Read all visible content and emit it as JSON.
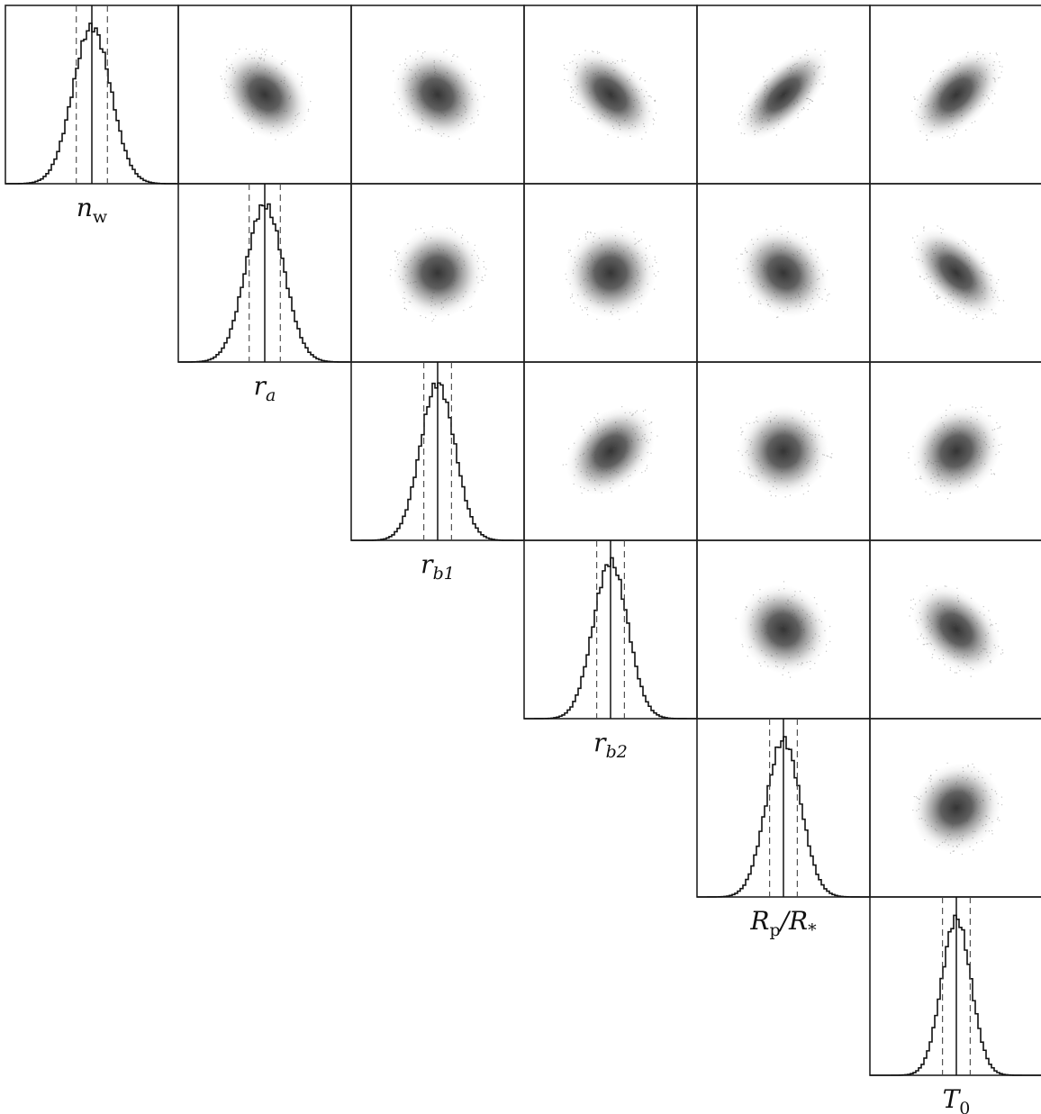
{
  "chart_data": {
    "type": "scatter",
    "description_type": "corner",
    "parameters": [
      {
        "symbol": "n",
        "subscript": "w",
        "subscript_italic": false
      },
      {
        "symbol": "r",
        "subscript": "a",
        "subscript_italic": true
      },
      {
        "symbol": "r",
        "subscript": "b1",
        "subscript_italic": true
      },
      {
        "symbol": "r",
        "subscript": "b2",
        "subscript_italic": true
      },
      {
        "symbol": "R",
        "subscript": "p",
        "subscript_italic": false,
        "suffix_symbol": "/R",
        "suffix_subscript": "*"
      },
      {
        "symbol": "T",
        "subscript": "0",
        "subscript_italic": false
      }
    ],
    "histograms": [
      {
        "param": 0,
        "median": 0.5,
        "lower": 0.41,
        "upper": 0.59,
        "spread": 0.11
      },
      {
        "param": 1,
        "median": 0.5,
        "lower": 0.41,
        "upper": 0.59,
        "spread": 0.11
      },
      {
        "param": 2,
        "median": 0.5,
        "lower": 0.42,
        "upper": 0.58,
        "spread": 0.1
      },
      {
        "param": 3,
        "median": 0.5,
        "lower": 0.42,
        "upper": 0.58,
        "spread": 0.1
      },
      {
        "param": 4,
        "median": 0.5,
        "lower": 0.42,
        "upper": 0.58,
        "spread": 0.1
      },
      {
        "param": 5,
        "median": 0.5,
        "lower": 0.42,
        "upper": 0.58,
        "spread": 0.085
      }
    ],
    "correlations": [
      {
        "row": 0,
        "col": 1,
        "rho": -0.3
      },
      {
        "row": 0,
        "col": 2,
        "rho": -0.2
      },
      {
        "row": 0,
        "col": 3,
        "rho": -0.5
      },
      {
        "row": 0,
        "col": 4,
        "rho": 0.75
      },
      {
        "row": 0,
        "col": 5,
        "rho": 0.55
      },
      {
        "row": 1,
        "col": 2,
        "rho": 0.0
      },
      {
        "row": 1,
        "col": 3,
        "rho": 0.0
      },
      {
        "row": 1,
        "col": 4,
        "rho": -0.2
      },
      {
        "row": 1,
        "col": 5,
        "rho": -0.6
      },
      {
        "row": 2,
        "col": 3,
        "rho": 0.35
      },
      {
        "row": 2,
        "col": 4,
        "rho": 0.0
      },
      {
        "row": 2,
        "col": 5,
        "rho": 0.15
      },
      {
        "row": 3,
        "col": 4,
        "rho": -0.1
      },
      {
        "row": 3,
        "col": 5,
        "rho": -0.4
      },
      {
        "row": 4,
        "col": 5,
        "rho": 0.1
      }
    ],
    "grid": false,
    "colors": {
      "hist": "#111111",
      "density": "#2a2a2a",
      "frame": "#222222",
      "quantile_line": "#444444"
    }
  }
}
